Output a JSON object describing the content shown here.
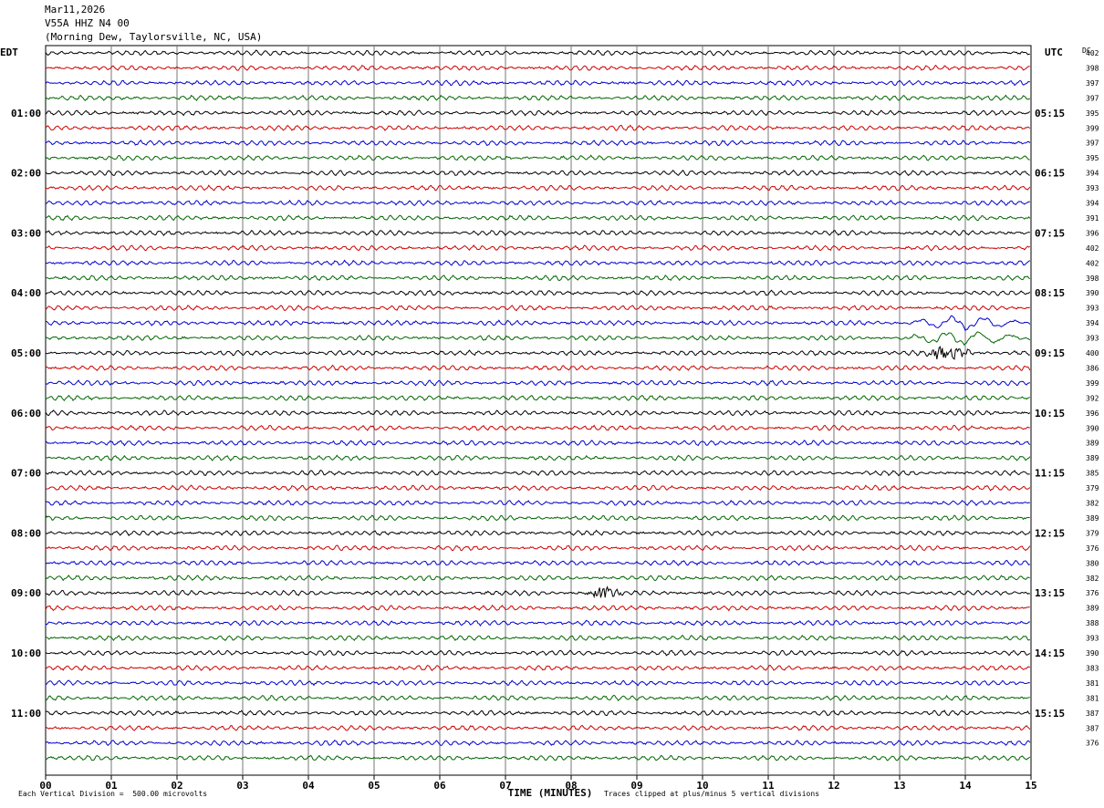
{
  "header": {
    "date": "Mar11,2026",
    "station": "V55A HHZ N4 00",
    "location": "(Morning Dew, Taylorsville, NC, USA)"
  },
  "left_timezone": "EDT",
  "right_timezone": "UTC",
  "dc_label": "DC",
  "left_hour_labels": [
    "01:00",
    "02:00",
    "03:00",
    "04:00",
    "05:00",
    "06:00",
    "07:00",
    "08:00",
    "09:00",
    "10:00",
    "11:00"
  ],
  "right_hour_labels": [
    "05:15",
    "06:15",
    "07:15",
    "08:15",
    "09:15",
    "10:15",
    "11:15",
    "12:15",
    "13:15",
    "14:15",
    "15:15"
  ],
  "x_tick_labels": [
    "00",
    "01",
    "02",
    "03",
    "04",
    "05",
    "06",
    "07",
    "08",
    "09",
    "10",
    "11",
    "12",
    "13",
    "14",
    "15"
  ],
  "xlabel": "TIME (MINUTES)",
  "footer_left": "Each Vertical Division =  500.00 microvolts",
  "footer_right": "Traces clipped at plus/minus 5 vertical divisions",
  "colors": {
    "trace_cycle": [
      "#000000",
      "#cc0000",
      "#0000cc",
      "#006600"
    ],
    "grid": "#777777"
  },
  "chart_data": {
    "type": "line",
    "title": "V55A HHZ N4 00",
    "xlabel": "TIME (MINUTES)",
    "xlim": [
      0,
      15
    ],
    "trace_count": 48,
    "trace_minutes": 15,
    "dc_values": [
      402,
      398,
      397,
      397,
      395,
      399,
      397,
      395,
      394,
      393,
      394,
      391,
      396,
      402,
      402,
      398,
      390,
      393,
      394,
      393,
      400,
      386,
      399,
      392,
      396,
      390,
      389,
      389,
      385,
      379,
      382,
      389,
      379,
      376,
      380,
      382,
      376,
      389,
      388,
      393,
      390,
      383,
      381,
      381,
      387,
      387,
      376
    ],
    "events": [
      {
        "trace": 18,
        "start_min": 13.0,
        "end_min": 15.0,
        "label": "long-period wave"
      },
      {
        "trace": 19,
        "start_min": 13.0,
        "end_min": 15.0,
        "label": "long-period wave"
      },
      {
        "trace": 20,
        "start_min": 13.3,
        "end_min": 14.2,
        "label": "local event"
      },
      {
        "trace": 36,
        "start_min": 8.2,
        "end_min": 8.8,
        "label": "burst"
      }
    ]
  }
}
